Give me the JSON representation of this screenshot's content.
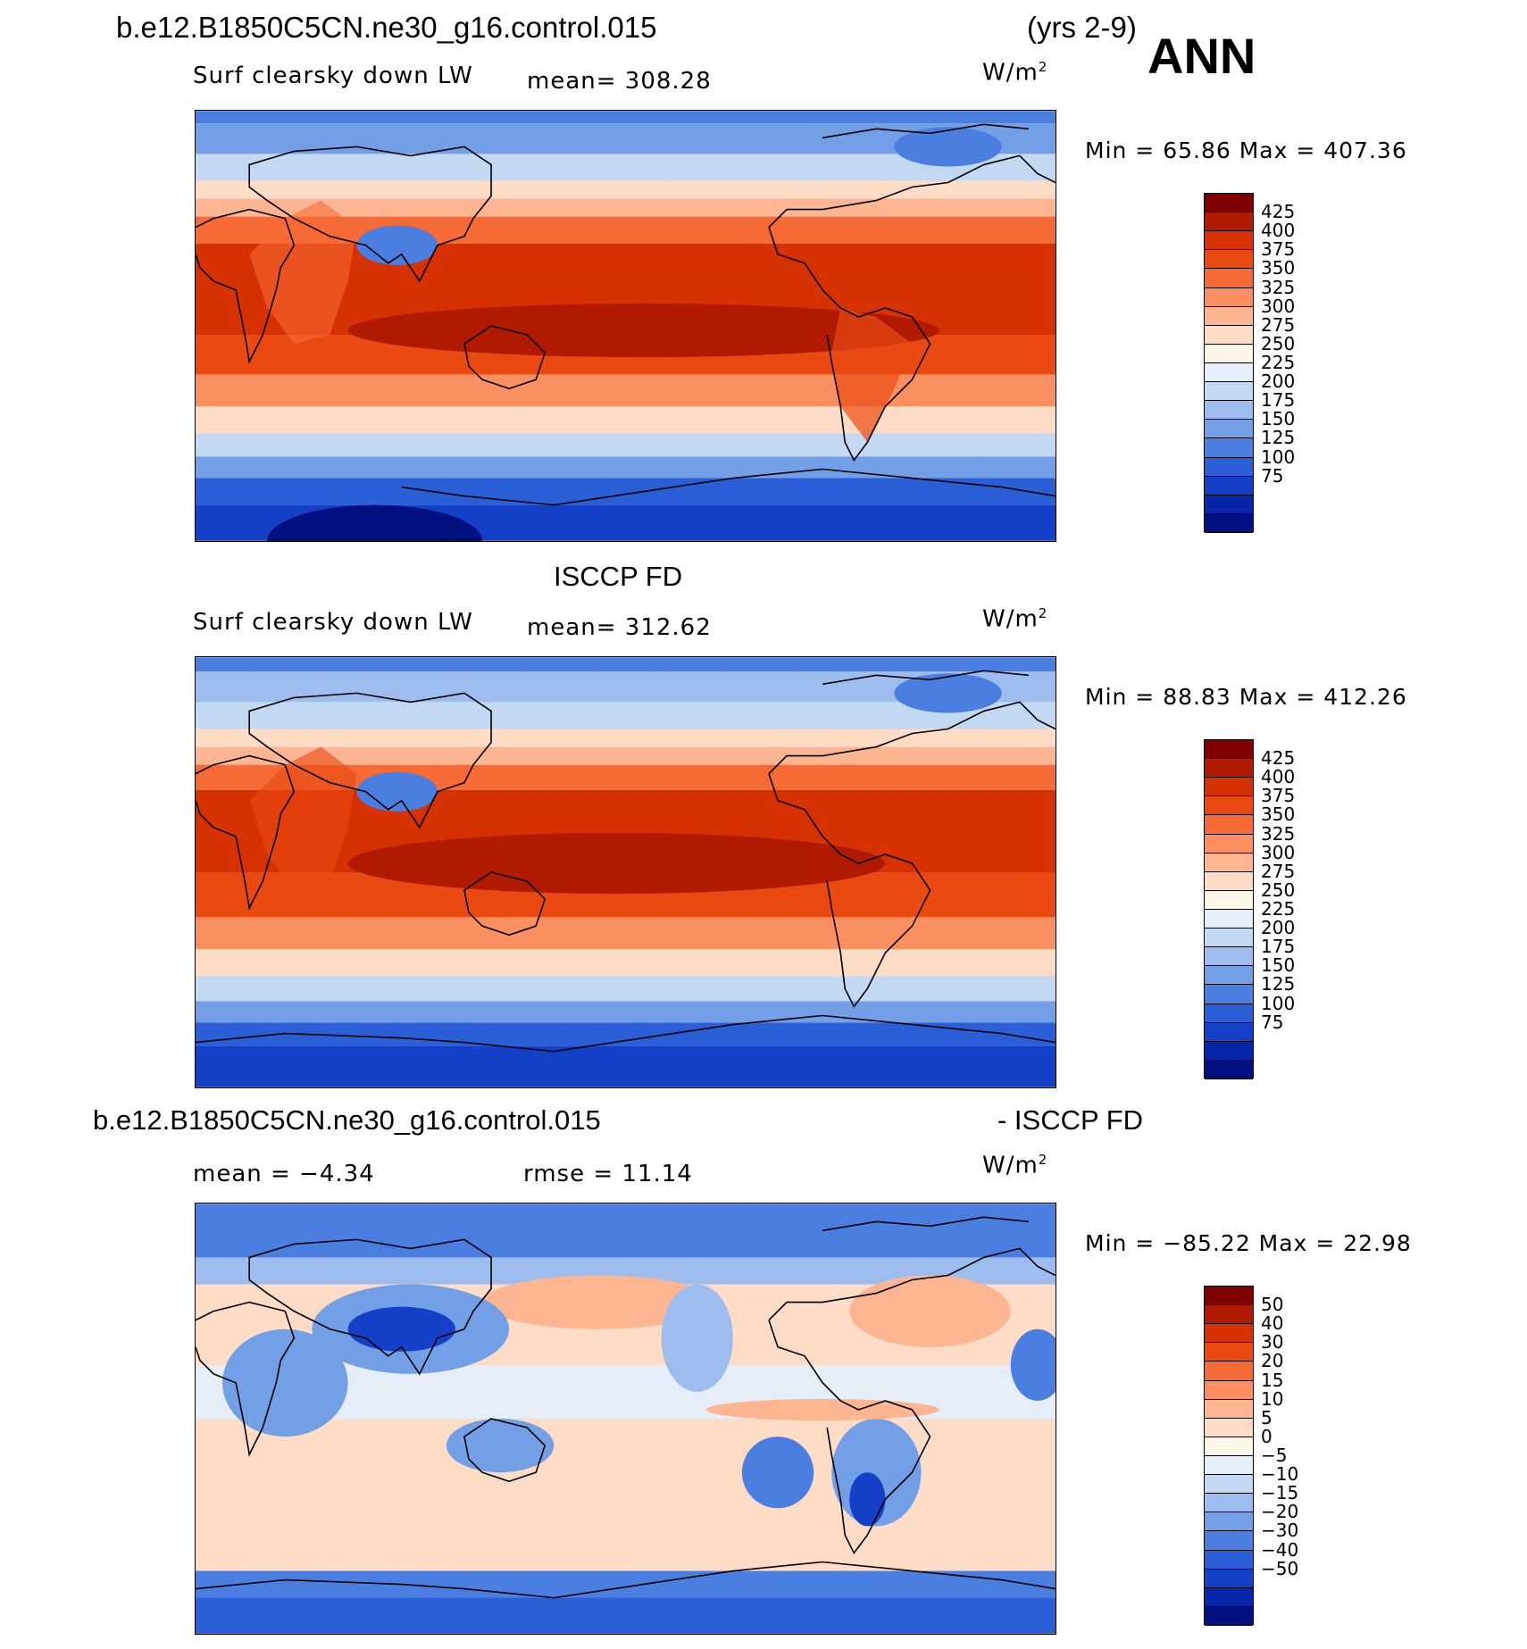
{
  "header": {
    "case_name": "b.e12.B1850C5CN.ne30_g16.control.015",
    "years": "(yrs 2-9)",
    "season": "ANN"
  },
  "panels": [
    {
      "title": "",
      "variable": "Surf clearsky down LW",
      "stat": "mean=  308.28",
      "units": "W/m",
      "units_sup": "2",
      "minmax": "Min =   65.86  Max  =  407.36",
      "colorbar": {
        "labels": [
          "425",
          "400",
          "375",
          "350",
          "325",
          "300",
          "275",
          "250",
          "225",
          "200",
          "175",
          "150",
          "125",
          "100",
          "75"
        ],
        "colors": [
          "#800000",
          "#b01a00",
          "#d63100",
          "#ea4a12",
          "#f66a35",
          "#fb8f5f",
          "#fdb592",
          "#fedcc6",
          "#fff6ea",
          "#e6eef9",
          "#c3d8f3",
          "#9cbdee",
          "#729fe6",
          "#4a7ee0",
          "#2a5fd8",
          "#1440c8",
          "#0625a8",
          "#001080"
        ]
      },
      "overlay_label": ""
    },
    {
      "title": "ISCCP FD",
      "variable": "Surf clearsky down LW",
      "stat": "mean=  312.62",
      "units": "W/m",
      "units_sup": "2",
      "minmax": "Min =   88.83  Max  =  412.26",
      "colorbar": {
        "labels": [
          "425",
          "400",
          "375",
          "350",
          "325",
          "300",
          "275",
          "250",
          "225",
          "200",
          "175",
          "150",
          "125",
          "100",
          "75"
        ],
        "colors": [
          "#800000",
          "#b01a00",
          "#d63100",
          "#ea4a12",
          "#f66a35",
          "#fb8f5f",
          "#fdb592",
          "#fedcc6",
          "#fff6ea",
          "#e6eef9",
          "#c3d8f3",
          "#9cbdee",
          "#729fe6",
          "#4a7ee0",
          "#2a5fd8",
          "#1440c8",
          "#0625a8",
          "#001080"
        ]
      }
    },
    {
      "title_left": "b.e12.B1850C5CN.ne30_g16.control.015",
      "title_right": "- ISCCP FD",
      "stat_mean": "mean =   −4.34",
      "stat_rmse": "rmse =   11.14",
      "units": "W/m",
      "units_sup": "2",
      "minmax": "Min = −85.22  Max  =   22.98",
      "colorbar": {
        "labels": [
          "50",
          "40",
          "30",
          "20",
          "15",
          "10",
          "5",
          "0",
          "−5",
          "−10",
          "−15",
          "−20",
          "−30",
          "−40",
          "−50"
        ],
        "colors": [
          "#800000",
          "#b01a00",
          "#d63100",
          "#ea4a12",
          "#f66a35",
          "#fb8f5f",
          "#fdb592",
          "#fedcc6",
          "#fff6ea",
          "#e6eef9",
          "#c3d8f3",
          "#9cbdee",
          "#729fe6",
          "#4a7ee0",
          "#2a5fd8",
          "#1440c8",
          "#0625a8",
          "#001080"
        ]
      }
    }
  ]
}
